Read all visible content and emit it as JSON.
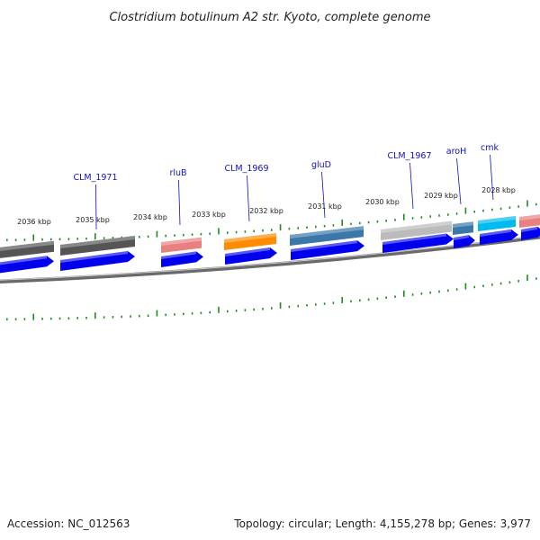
{
  "title": "Clostridium botulinum A2 str. Kyoto, complete genome",
  "footer": {
    "accession": "Accession: NC_012563",
    "summary": "Topology: circular; Length: 4,155,278 bp; Genes: 3,977"
  },
  "kbp_labels": [
    "2036 kbp",
    "2035 kbp",
    "2034 kbp",
    "2033 kbp",
    "2032 kbp",
    "2031 kbp",
    "2030 kbp",
    "2029 kbp",
    "2028 kbp"
  ],
  "gene_labels": [
    "CLM_1971",
    "rluB",
    "CLM_1969",
    "gluD",
    "CLM_1967",
    "aroH",
    "cmk"
  ],
  "colors": {
    "backbone": "#888888",
    "cds_arrow": "#0000ee",
    "tick": "#1e8c1e",
    "label": "#1010c0",
    "genes": [
      "#555555",
      "#555555",
      "#e88080",
      "#ff8c00",
      "#3b78a8",
      "#bbbbbb",
      "#3b78a8",
      "#00bbee",
      "#e88080"
    ]
  }
}
